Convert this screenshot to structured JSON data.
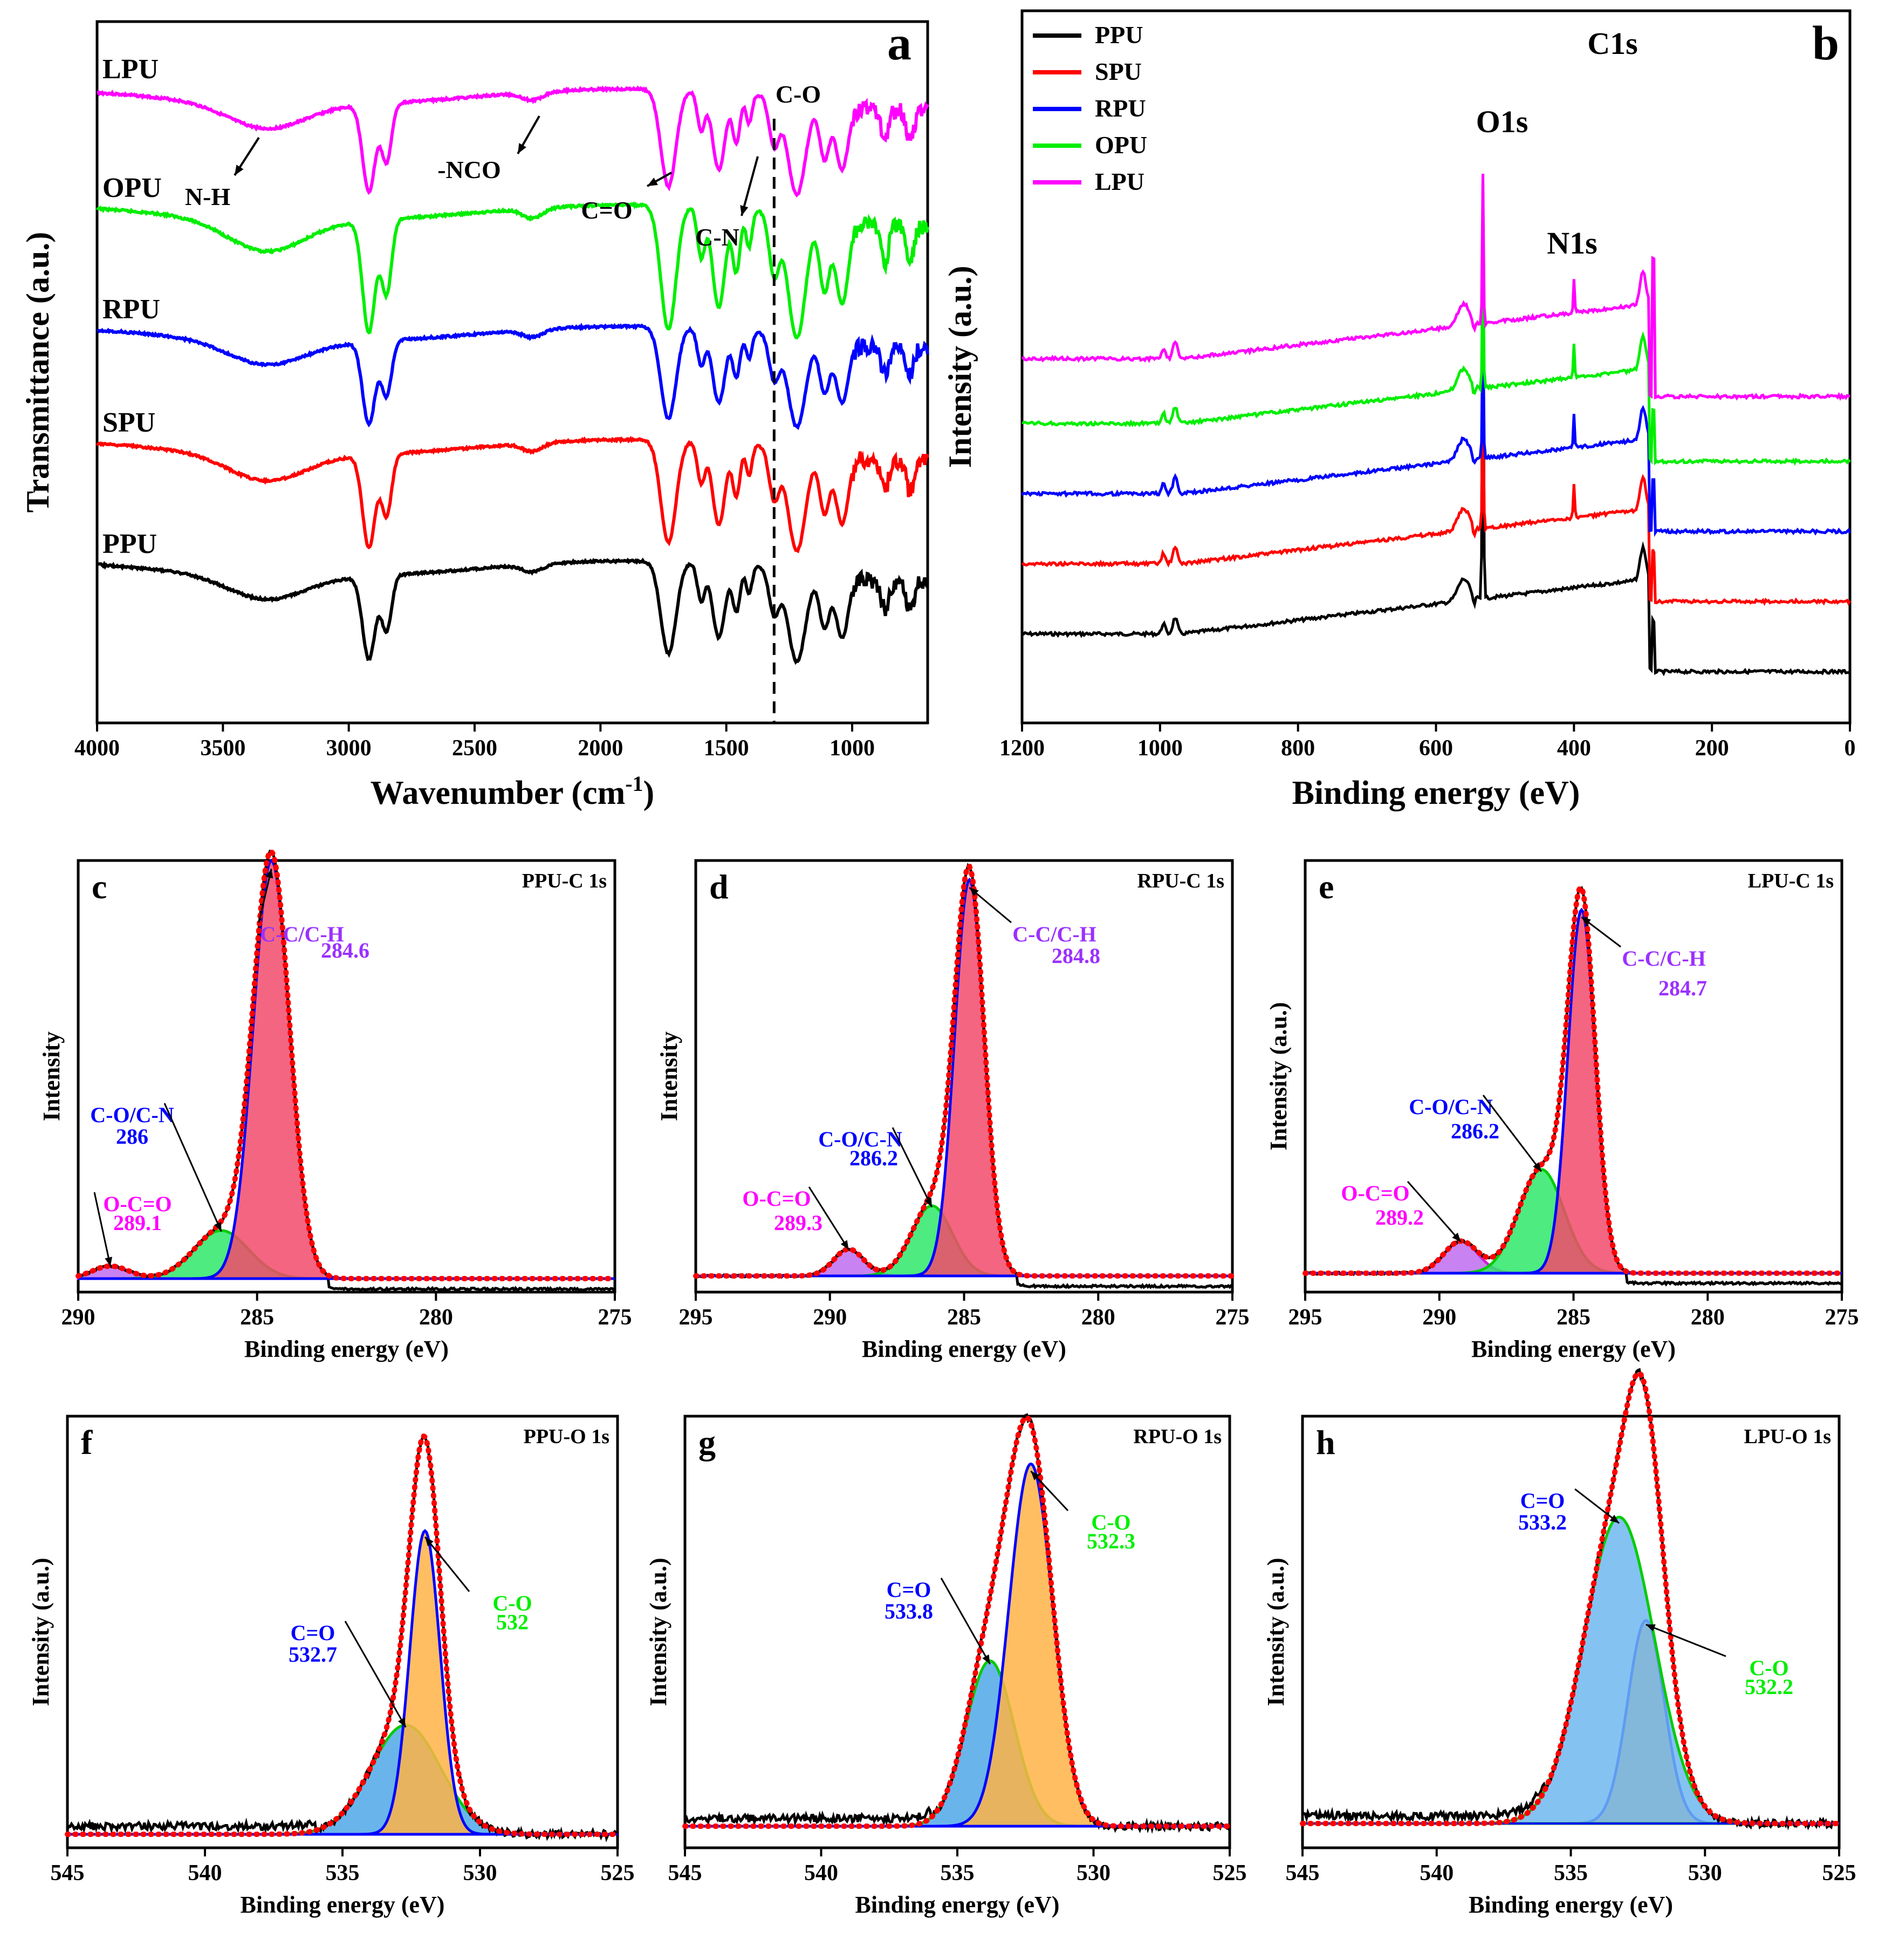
{
  "colors": {
    "PPU": "#000000",
    "SPU": "#ff0000",
    "RPU": "#0000ff",
    "OPU": "#00ee00",
    "LPU": "#ff00ff",
    "violet": "#9b30ff",
    "blue": "#0000ff",
    "magenta": "#ff00ff",
    "green": "#00ee00"
  },
  "chart_data": [
    {
      "panel": "a",
      "type": "line",
      "title": "",
      "xlabel": "Wavenumber (cm",
      "xlabel_sup": "-1",
      "xlabel_close": ")",
      "ylabel": "Transmittance (a.u.)",
      "xlim": [
        4000,
        700
      ],
      "xticks": [
        4000,
        3500,
        3000,
        2500,
        2000,
        1500,
        1000
      ],
      "series_order": [
        "LPU",
        "OPU",
        "RPU",
        "SPU",
        "PPU"
      ],
      "series": [
        {
          "name": "LPU"
        },
        {
          "name": "OPU"
        },
        {
          "name": "RPU"
        },
        {
          "name": "SPU"
        },
        {
          "name": "PPU"
        }
      ],
      "dashed_line_x": 1310,
      "annotations": [
        "N-H",
        "-NCO",
        "C=O",
        "C-N",
        "C-O"
      ],
      "peaks": [
        {
          "x": 3330,
          "depth": 0.25,
          "width": 150
        },
        {
          "x": 2920,
          "depth": 0.9,
          "width": 25
        },
        {
          "x": 2850,
          "depth": 0.6,
          "width": 20
        },
        {
          "x": 2270,
          "depth": 0.08,
          "width": 40
        },
        {
          "x": 1730,
          "depth": 1.0,
          "width": 30
        },
        {
          "x": 1600,
          "depth": 0.4,
          "width": 15
        },
        {
          "x": 1530,
          "depth": 0.8,
          "width": 25
        },
        {
          "x": 1460,
          "depth": 0.5,
          "width": 15
        },
        {
          "x": 1410,
          "depth": 0.3,
          "width": 12
        },
        {
          "x": 1310,
          "depth": 0.5,
          "width": 20
        },
        {
          "x": 1220,
          "depth": 1.0,
          "width": 35
        },
        {
          "x": 1110,
          "depth": 0.6,
          "width": 20
        },
        {
          "x": 1040,
          "depth": 0.7,
          "width": 25
        },
        {
          "x": 870,
          "depth": 0.3,
          "width": 15
        },
        {
          "x": 770,
          "depth": 0.3,
          "width": 15
        }
      ]
    },
    {
      "panel": "b",
      "type": "line",
      "xlabel": "Binding energy (eV)",
      "ylabel": "Intensity (a.u.)",
      "xlim": [
        1200,
        0
      ],
      "xticks": [
        1200,
        1000,
        800,
        600,
        400,
        200,
        0
      ],
      "legend": [
        "PPU",
        "SPU",
        "RPU",
        "OPU",
        "LPU"
      ],
      "peak_labels": [
        {
          "text": "C1s",
          "x": 285
        },
        {
          "text": "O1s",
          "x": 532
        },
        {
          "text": "N1s",
          "x": 400
        }
      ]
    },
    {
      "panel": "c",
      "type": "line",
      "title": "PPU-C 1s",
      "xlabel": "Binding energy (eV)",
      "ylabel": "Intensity",
      "xlim": [
        290,
        275
      ],
      "xticks": [
        290,
        285,
        280,
        275
      ],
      "components": [
        {
          "name": "C-C/C-H",
          "center": 284.6,
          "height": 1.0,
          "fwhm": 1.2,
          "label_color": "violet"
        },
        {
          "name": "C-O/C-N",
          "center": 286.0,
          "height": 0.115,
          "fwhm": 1.8,
          "label_color": "blue"
        },
        {
          "name": "O-C=O",
          "center": 289.1,
          "height": 0.03,
          "fwhm": 1.2,
          "label_color": "magenta"
        }
      ]
    },
    {
      "panel": "d",
      "type": "line",
      "title": "RPU-C 1s",
      "xlabel": "Binding energy (eV)",
      "ylabel": "Intensity",
      "xlim": [
        295,
        275
      ],
      "xticks": [
        295,
        290,
        285,
        280,
        275
      ],
      "components": [
        {
          "name": "C-C/C-H",
          "center": 284.8,
          "height": 0.96,
          "fwhm": 1.3,
          "label_color": "violet"
        },
        {
          "name": "C-O/C-N",
          "center": 286.2,
          "height": 0.17,
          "fwhm": 1.8,
          "label_color": "blue"
        },
        {
          "name": "O-C=O",
          "center": 289.3,
          "height": 0.065,
          "fwhm": 1.3,
          "label_color": "magenta"
        }
      ]
    },
    {
      "panel": "e",
      "type": "line",
      "title": "LPU-C 1s",
      "xlabel": "Binding energy (eV)",
      "ylabel": "Intensity (a.u.)",
      "xlim": [
        295,
        275
      ],
      "xticks": [
        295,
        290,
        285,
        280,
        275
      ],
      "components": [
        {
          "name": "C-C/C-H",
          "center": 284.7,
          "height": 0.91,
          "fwhm": 1.2,
          "label_color": "violet"
        },
        {
          "name": "C-O/C-N",
          "center": 286.2,
          "height": 0.26,
          "fwhm": 2.0,
          "label_color": "blue"
        },
        {
          "name": "O-C=O",
          "center": 289.2,
          "height": 0.08,
          "fwhm": 1.5,
          "label_color": "magenta"
        }
      ]
    },
    {
      "panel": "f",
      "type": "line",
      "title": "PPU-O 1s",
      "xlabel": "Binding energy (eV)",
      "ylabel": "Intensity (a.u.)",
      "xlim": [
        545,
        525
      ],
      "xticks": [
        545,
        540,
        535,
        530,
        525
      ],
      "components": [
        {
          "name": "C-O",
          "center": 532.0,
          "height": 0.75,
          "fwhm": 1.3,
          "label_color": "green"
        },
        {
          "name": "C=O",
          "center": 532.7,
          "height": 0.27,
          "fwhm": 3.0,
          "label_color": "blue"
        }
      ]
    },
    {
      "panel": "g",
      "type": "line",
      "title": "RPU-O 1s",
      "xlabel": "Binding energy (eV)",
      "ylabel": "Intensity (a.u.)",
      "xlim": [
        545,
        525
      ],
      "xticks": [
        545,
        540,
        535,
        530,
        525
      ],
      "components": [
        {
          "name": "C-O",
          "center": 532.3,
          "height": 0.92,
          "fwhm": 1.9,
          "label_color": "green"
        },
        {
          "name": "C=O",
          "center": 533.8,
          "height": 0.42,
          "fwhm": 2.1,
          "label_color": "blue"
        }
      ]
    },
    {
      "panel": "h",
      "type": "line",
      "title": "LPU-O 1s",
      "xlabel": "Binding energy (eV)",
      "ylabel": "Intensity (a.u.)",
      "xlim": [
        545,
        525
      ],
      "xticks": [
        545,
        540,
        535,
        530,
        525
      ],
      "components": [
        {
          "name": "C=O",
          "center": 533.2,
          "height": 0.8,
          "fwhm": 3.1,
          "label_color": "blue"
        },
        {
          "name": "C-O",
          "center": 532.2,
          "height": 0.53,
          "fwhm": 1.6,
          "label_color": "green"
        }
      ]
    }
  ]
}
